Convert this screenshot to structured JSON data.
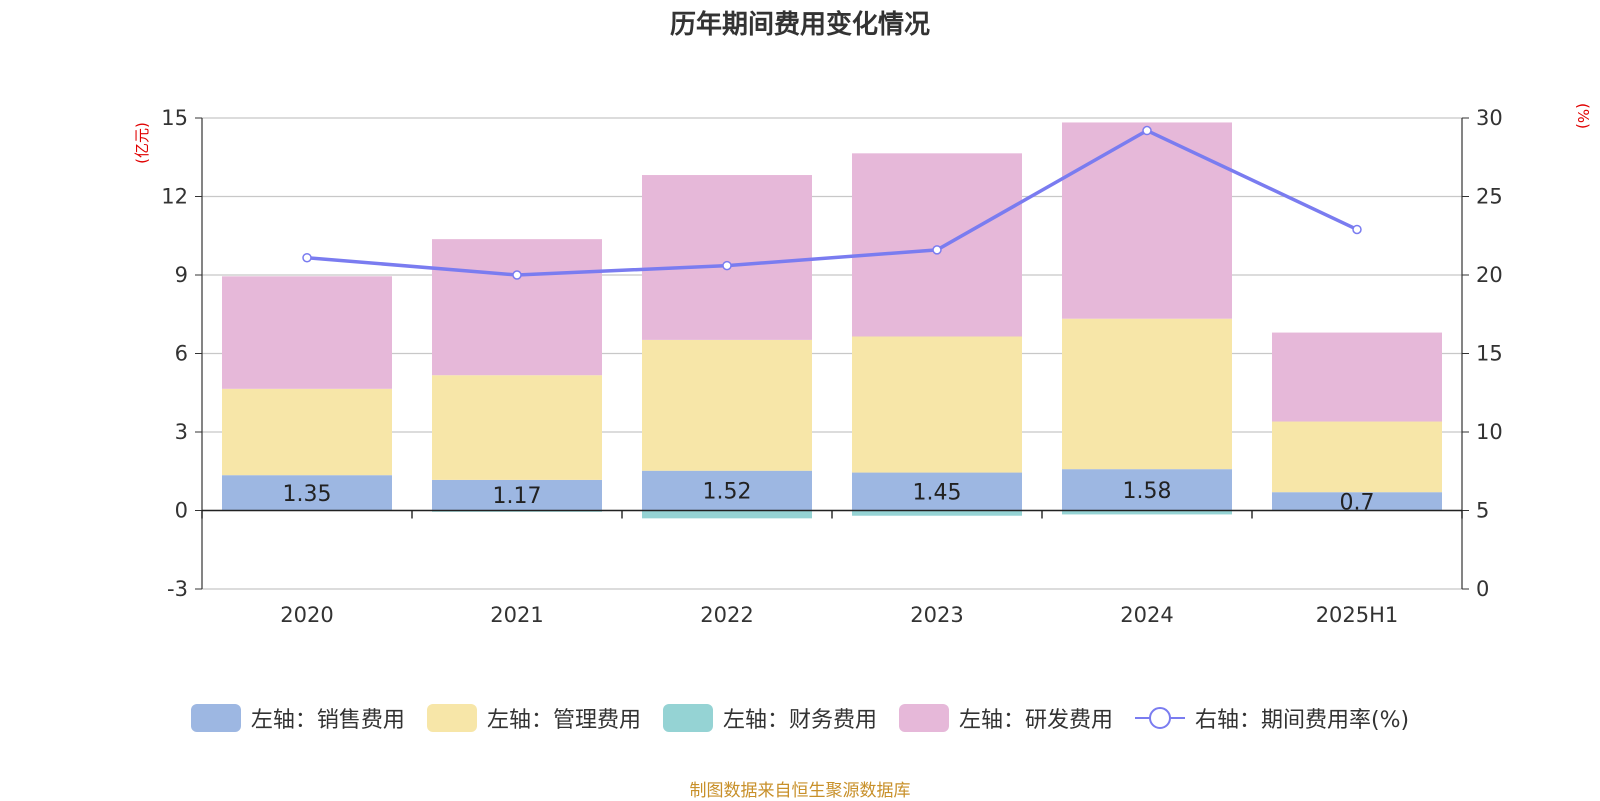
{
  "chart_data": {
    "type": "bar",
    "stacked": true,
    "title": "历年期间费用变化情况",
    "left_axis_unit": "(亿元)",
    "right_axis_unit": "(%)",
    "categories": [
      "2020",
      "2021",
      "2022",
      "2023",
      "2024",
      "2025H1"
    ],
    "left_ticks": [
      "-3",
      "0",
      "3",
      "6",
      "9",
      "12",
      "15"
    ],
    "right_ticks": [
      "0",
      "5",
      "10",
      "15",
      "20",
      "25",
      "30"
    ],
    "ylim_left": [
      -3,
      15
    ],
    "ylim_right": [
      0,
      30
    ],
    "grid": true,
    "legend_position": "bottom",
    "series": [
      {
        "name": "左轴：销售费用",
        "axis": "left",
        "color": "#9db7e2",
        "values": [
          1.35,
          1.17,
          1.52,
          1.45,
          1.58,
          0.7
        ],
        "labels": [
          "1.35",
          "1.17",
          "1.52",
          "1.45",
          "1.58",
          "0.7"
        ]
      },
      {
        "name": "左轴：管理费用",
        "axis": "left",
        "color": "#f7e6a8",
        "values": [
          3.3,
          4.0,
          5.0,
          5.2,
          5.75,
          2.7
        ]
      },
      {
        "name": "左轴：财务费用",
        "axis": "left",
        "color": "#95d3d4",
        "values": [
          0.0,
          -0.05,
          -0.3,
          -0.2,
          -0.15,
          0.0
        ]
      },
      {
        "name": "左轴：研发费用",
        "axis": "left",
        "color": "#e6b8d9",
        "values": [
          4.3,
          5.2,
          6.3,
          7.0,
          7.5,
          3.4
        ]
      },
      {
        "name": "右轴：期间费用率(%)",
        "axis": "right",
        "type": "line",
        "color": "#7a7cf0",
        "values": [
          21.1,
          20.0,
          20.6,
          21.6,
          29.2,
          22.9
        ]
      }
    ]
  },
  "source": "制图数据来自恒生聚源数据库"
}
